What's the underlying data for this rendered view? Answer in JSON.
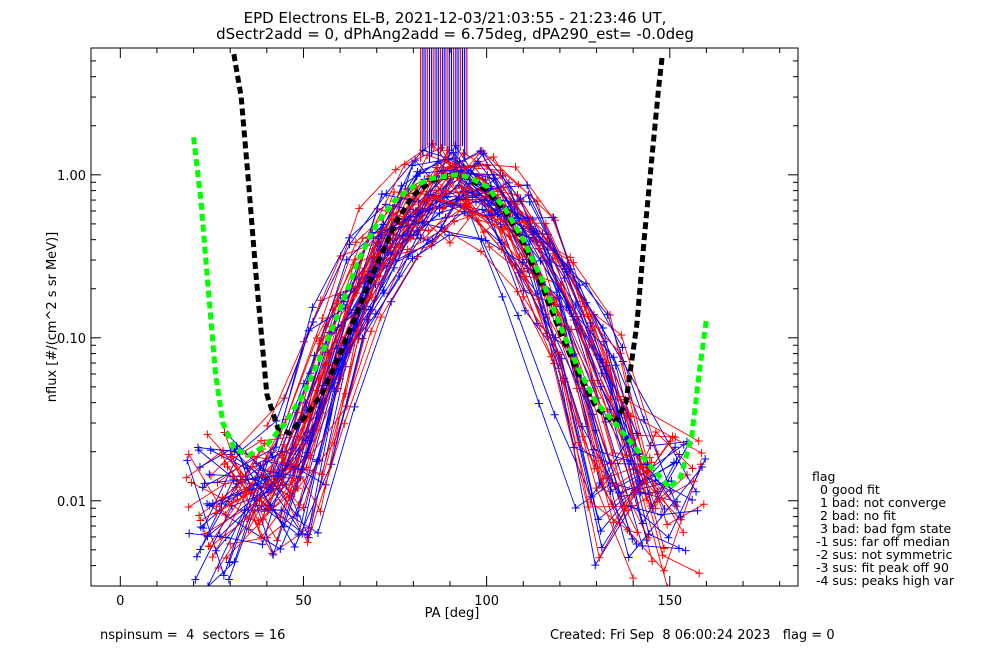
{
  "chart_data": {
    "type": "line",
    "title": "EPD Electrons EL-B, 2021-12-03/21:03:55 - 21:23:46 UT,",
    "subtitle": "dSectr2add = 0, dPhAng2add = 6.75deg, dPA290_est=  -0.0deg",
    "xlabel": "PA [deg]",
    "ylabel": "nflux [#/(cm^2 s sr MeV)]",
    "xlim": [
      -8,
      185
    ],
    "ylim": [
      0.003,
      6.0
    ],
    "yscale": "log",
    "xticks": [
      0,
      50,
      100,
      150
    ],
    "xtick_labels": [
      "0",
      "50",
      "100",
      "150"
    ],
    "yticks": [
      0.01,
      0.1,
      1.0
    ],
    "ytick_labels": [
      "0.01",
      "0.10",
      "1.00"
    ],
    "grid": false,
    "series": [
      {
        "color": "#000000",
        "style": "thick-dashed",
        "x": [
          31,
          33,
          35,
          37,
          40,
          43,
          46,
          50,
          55,
          60,
          65,
          70,
          75,
          80,
          85,
          90,
          92,
          95,
          100,
          105,
          110,
          115,
          120,
          125,
          130,
          135,
          138,
          141,
          143,
          145,
          147,
          148
        ],
        "y": [
          5.5,
          3.0,
          0.9,
          0.25,
          0.045,
          0.028,
          0.026,
          0.032,
          0.045,
          0.08,
          0.15,
          0.28,
          0.5,
          0.75,
          0.92,
          0.99,
          1.0,
          0.96,
          0.8,
          0.6,
          0.38,
          0.21,
          0.11,
          0.06,
          0.037,
          0.03,
          0.04,
          0.12,
          0.4,
          1.2,
          3.5,
          5.5
        ]
      },
      {
        "color": "#00ff00",
        "style": "thick-dashed",
        "x": [
          20,
          22,
          24,
          26,
          28,
          31,
          35,
          40,
          45,
          50,
          55,
          60,
          65,
          70,
          75,
          80,
          85,
          90,
          92,
          95,
          100,
          105,
          110,
          115,
          120,
          125,
          130,
          135,
          140,
          145,
          150,
          153,
          156,
          158,
          160
        ],
        "y": [
          1.7,
          0.7,
          0.2,
          0.06,
          0.03,
          0.021,
          0.019,
          0.022,
          0.03,
          0.045,
          0.08,
          0.15,
          0.3,
          0.5,
          0.7,
          0.85,
          0.95,
          0.99,
          1.0,
          0.97,
          0.85,
          0.62,
          0.4,
          0.23,
          0.12,
          0.065,
          0.04,
          0.03,
          0.022,
          0.016,
          0.012,
          0.014,
          0.025,
          0.06,
          0.13
        ]
      }
    ]
  }
}
